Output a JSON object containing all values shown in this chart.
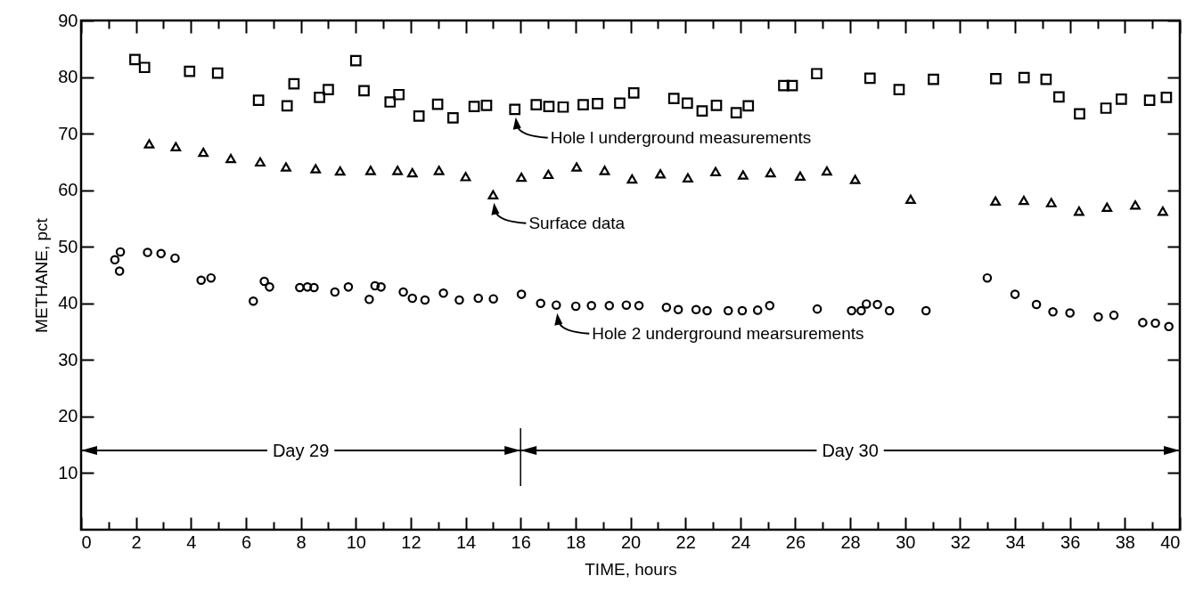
{
  "chart_data": {
    "type": "scatter",
    "xlabel": "TIME, hours",
    "ylabel": "METHANE, pct",
    "xlim": [
      0,
      40
    ],
    "ylim": [
      0,
      90
    ],
    "xticks": [
      0,
      {
        "value": 1,
        "label": null
      },
      2,
      {
        "value": 3,
        "label": null
      },
      4,
      {
        "value": 5,
        "label": null
      },
      6,
      {
        "value": 7,
        "label": null
      },
      8,
      {
        "value": 9,
        "label": null
      },
      10,
      {
        "value": 11,
        "label": null
      },
      12,
      {
        "value": 13,
        "label": null
      },
      14,
      {
        "value": 15,
        "label": null
      },
      16,
      {
        "value": 17,
        "label": null
      },
      18,
      {
        "value": 19,
        "label": null
      },
      20,
      {
        "value": 21,
        "label": null
      },
      22,
      {
        "value": 23,
        "label": null
      },
      24,
      {
        "value": 25,
        "label": null
      },
      26,
      {
        "value": 27,
        "label": null
      },
      28,
      {
        "value": 29,
        "label": null
      },
      30,
      {
        "value": 31,
        "label": null
      },
      32,
      {
        "value": 33,
        "label": null
      },
      34,
      {
        "value": 35,
        "label": null
      },
      36,
      {
        "value": 37,
        "label": null
      },
      38,
      {
        "value": 39,
        "label": null
      },
      40
    ],
    "yticks": [
      10,
      20,
      30,
      40,
      50,
      60,
      70,
      80,
      90
    ],
    "series": [
      {
        "marker": "square",
        "color": "#000000",
        "x": [
          1.96,
          2.31,
          3.95,
          4.97,
          6.46,
          7.5,
          7.75,
          8.68,
          9.0,
          10.0,
          10.3,
          11.25,
          11.57,
          12.3,
          12.98,
          13.54,
          14.31,
          14.76,
          15.79,
          16.57,
          17.03,
          17.55,
          18.28,
          18.8,
          19.61,
          20.12,
          21.58,
          22.07,
          22.61,
          23.13,
          23.85,
          24.29,
          25.58,
          25.89,
          26.78,
          28.72,
          29.78,
          31.03,
          33.3,
          34.33,
          35.13,
          35.6,
          36.35,
          37.31,
          37.87,
          38.9,
          39.51
        ],
        "values": [
          83.1,
          81.7,
          81.0,
          80.7,
          75.9,
          74.9,
          78.8,
          76.4,
          77.8,
          82.9,
          77.6,
          75.6,
          76.9,
          73.1,
          75.2,
          72.8,
          74.8,
          75.0,
          74.3,
          75.1,
          74.8,
          74.7,
          75.1,
          75.3,
          75.4,
          77.2,
          76.2,
          75.4,
          74.0,
          75.0,
          73.7,
          74.9,
          78.5,
          78.5,
          80.6,
          79.8,
          77.8,
          79.6,
          79.7,
          79.9,
          79.6,
          76.5,
          73.5,
          74.5,
          76.1,
          75.9,
          76.4
        ]
      },
      {
        "marker": "triangle",
        "color": "#000000",
        "x": [
          2.48,
          3.45,
          4.45,
          5.45,
          6.52,
          7.46,
          8.54,
          9.43,
          10.54,
          11.52,
          12.06,
          13.03,
          14.0,
          15.0,
          16.03,
          17.01,
          18.04,
          19.06,
          20.06,
          21.09,
          22.09,
          23.1,
          24.1,
          25.1,
          26.18,
          27.15,
          28.18,
          30.2,
          33.29,
          34.32,
          35.32,
          36.33,
          37.35,
          38.38,
          39.38
        ],
        "values": [
          68.2,
          67.7,
          66.7,
          65.6,
          65.0,
          64.1,
          63.8,
          63.4,
          63.5,
          63.5,
          63.1,
          63.5,
          62.4,
          59.2,
          62.3,
          62.8,
          64.1,
          63.5,
          62.0,
          62.9,
          62.2,
          63.3,
          62.7,
          63.1,
          62.5,
          63.4,
          61.9,
          58.4,
          58.1,
          58.2,
          57.8,
          56.3,
          57.0,
          57.4,
          56.3
        ]
      },
      {
        "marker": "circle",
        "color": "#000000",
        "x": [
          1.23,
          1.43,
          1.4,
          2.42,
          2.91,
          3.42,
          4.37,
          4.73,
          6.27,
          6.67,
          6.86,
          7.96,
          8.24,
          8.48,
          9.24,
          9.73,
          10.49,
          10.7,
          10.92,
          11.73,
          12.06,
          12.52,
          13.19,
          13.77,
          14.46,
          15.01,
          16.03,
          16.73,
          17.3,
          18.01,
          18.58,
          19.23,
          19.85,
          20.31,
          21.31,
          21.74,
          22.39,
          22.79,
          23.56,
          24.07,
          24.63,
          25.07,
          26.8,
          28.05,
          28.4,
          28.59,
          28.99,
          29.43,
          30.76,
          32.99,
          34.0,
          34.78,
          35.38,
          36.0,
          37.03,
          37.6,
          38.65,
          39.11,
          39.6
        ],
        "values": [
          47.7,
          49.1,
          45.7,
          49.0,
          48.8,
          48.0,
          44.1,
          44.5,
          40.4,
          43.9,
          42.9,
          42.8,
          42.9,
          42.8,
          42.0,
          42.9,
          40.7,
          43.1,
          42.9,
          42.0,
          40.9,
          40.6,
          41.8,
          40.6,
          40.9,
          40.8,
          41.6,
          40.0,
          39.7,
          39.5,
          39.6,
          39.6,
          39.7,
          39.6,
          39.3,
          38.9,
          38.9,
          38.7,
          38.7,
          38.7,
          38.8,
          39.6,
          39.0,
          38.7,
          38.7,
          39.9,
          39.8,
          38.7,
          38.7,
          44.5,
          41.6,
          39.8,
          38.5,
          38.3,
          37.6,
          37.9,
          36.6,
          36.5,
          35.9
        ]
      }
    ],
    "annotations": [
      {
        "text": "Hole l underground measurements",
        "x": 15.79,
        "y": 74.3
      },
      {
        "text": "Surface data",
        "x": 15.0,
        "y": 59.2
      },
      {
        "text": "Hole 2 underground mearsurements",
        "x": 17.3,
        "y": 39.7
      },
      {
        "text": "Day 29",
        "x": 16,
        "y": 14
      },
      {
        "text": "Day 30",
        "x": 16,
        "y": 14
      }
    ],
    "ref_lines": [
      {
        "axis": "x",
        "value": 16
      }
    ]
  }
}
